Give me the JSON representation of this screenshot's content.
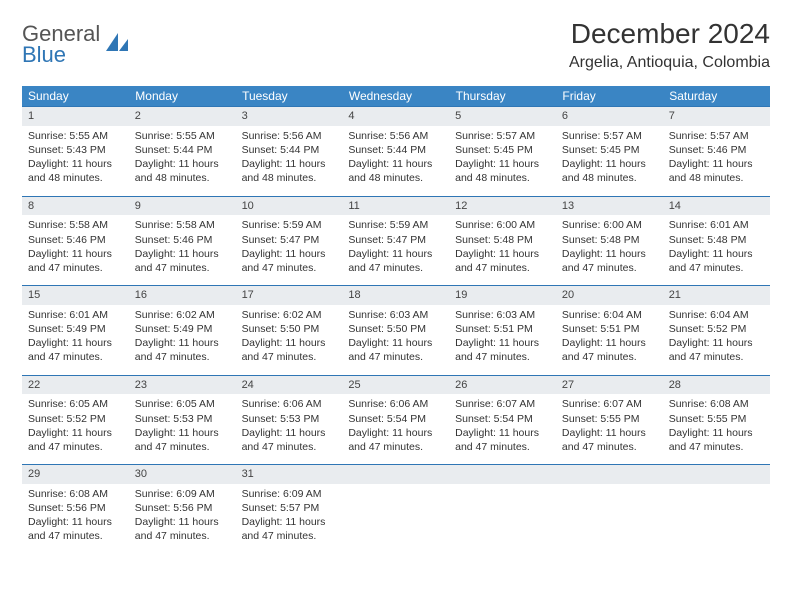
{
  "brand": {
    "line1": "General",
    "line2": "Blue"
  },
  "title": "December 2024",
  "location": "Argelia, Antioquia, Colombia",
  "colors": {
    "header_bg": "#3a85c4",
    "accent": "#2f76b5",
    "daynum_bg": "#e9ecef",
    "text": "#333333",
    "background": "#ffffff"
  },
  "weekdays": [
    "Sunday",
    "Monday",
    "Tuesday",
    "Wednesday",
    "Thursday",
    "Friday",
    "Saturday"
  ],
  "days": [
    {
      "n": 1,
      "sunrise": "5:55 AM",
      "sunset": "5:43 PM",
      "daylight": "11 hours and 48 minutes."
    },
    {
      "n": 2,
      "sunrise": "5:55 AM",
      "sunset": "5:44 PM",
      "daylight": "11 hours and 48 minutes."
    },
    {
      "n": 3,
      "sunrise": "5:56 AM",
      "sunset": "5:44 PM",
      "daylight": "11 hours and 48 minutes."
    },
    {
      "n": 4,
      "sunrise": "5:56 AM",
      "sunset": "5:44 PM",
      "daylight": "11 hours and 48 minutes."
    },
    {
      "n": 5,
      "sunrise": "5:57 AM",
      "sunset": "5:45 PM",
      "daylight": "11 hours and 48 minutes."
    },
    {
      "n": 6,
      "sunrise": "5:57 AM",
      "sunset": "5:45 PM",
      "daylight": "11 hours and 48 minutes."
    },
    {
      "n": 7,
      "sunrise": "5:57 AM",
      "sunset": "5:46 PM",
      "daylight": "11 hours and 48 minutes."
    },
    {
      "n": 8,
      "sunrise": "5:58 AM",
      "sunset": "5:46 PM",
      "daylight": "11 hours and 47 minutes."
    },
    {
      "n": 9,
      "sunrise": "5:58 AM",
      "sunset": "5:46 PM",
      "daylight": "11 hours and 47 minutes."
    },
    {
      "n": 10,
      "sunrise": "5:59 AM",
      "sunset": "5:47 PM",
      "daylight": "11 hours and 47 minutes."
    },
    {
      "n": 11,
      "sunrise": "5:59 AM",
      "sunset": "5:47 PM",
      "daylight": "11 hours and 47 minutes."
    },
    {
      "n": 12,
      "sunrise": "6:00 AM",
      "sunset": "5:48 PM",
      "daylight": "11 hours and 47 minutes."
    },
    {
      "n": 13,
      "sunrise": "6:00 AM",
      "sunset": "5:48 PM",
      "daylight": "11 hours and 47 minutes."
    },
    {
      "n": 14,
      "sunrise": "6:01 AM",
      "sunset": "5:48 PM",
      "daylight": "11 hours and 47 minutes."
    },
    {
      "n": 15,
      "sunrise": "6:01 AM",
      "sunset": "5:49 PM",
      "daylight": "11 hours and 47 minutes."
    },
    {
      "n": 16,
      "sunrise": "6:02 AM",
      "sunset": "5:49 PM",
      "daylight": "11 hours and 47 minutes."
    },
    {
      "n": 17,
      "sunrise": "6:02 AM",
      "sunset": "5:50 PM",
      "daylight": "11 hours and 47 minutes."
    },
    {
      "n": 18,
      "sunrise": "6:03 AM",
      "sunset": "5:50 PM",
      "daylight": "11 hours and 47 minutes."
    },
    {
      "n": 19,
      "sunrise": "6:03 AM",
      "sunset": "5:51 PM",
      "daylight": "11 hours and 47 minutes."
    },
    {
      "n": 20,
      "sunrise": "6:04 AM",
      "sunset": "5:51 PM",
      "daylight": "11 hours and 47 minutes."
    },
    {
      "n": 21,
      "sunrise": "6:04 AM",
      "sunset": "5:52 PM",
      "daylight": "11 hours and 47 minutes."
    },
    {
      "n": 22,
      "sunrise": "6:05 AM",
      "sunset": "5:52 PM",
      "daylight": "11 hours and 47 minutes."
    },
    {
      "n": 23,
      "sunrise": "6:05 AM",
      "sunset": "5:53 PM",
      "daylight": "11 hours and 47 minutes."
    },
    {
      "n": 24,
      "sunrise": "6:06 AM",
      "sunset": "5:53 PM",
      "daylight": "11 hours and 47 minutes."
    },
    {
      "n": 25,
      "sunrise": "6:06 AM",
      "sunset": "5:54 PM",
      "daylight": "11 hours and 47 minutes."
    },
    {
      "n": 26,
      "sunrise": "6:07 AM",
      "sunset": "5:54 PM",
      "daylight": "11 hours and 47 minutes."
    },
    {
      "n": 27,
      "sunrise": "6:07 AM",
      "sunset": "5:55 PM",
      "daylight": "11 hours and 47 minutes."
    },
    {
      "n": 28,
      "sunrise": "6:08 AM",
      "sunset": "5:55 PM",
      "daylight": "11 hours and 47 minutes."
    },
    {
      "n": 29,
      "sunrise": "6:08 AM",
      "sunset": "5:56 PM",
      "daylight": "11 hours and 47 minutes."
    },
    {
      "n": 30,
      "sunrise": "6:09 AM",
      "sunset": "5:56 PM",
      "daylight": "11 hours and 47 minutes."
    },
    {
      "n": 31,
      "sunrise": "6:09 AM",
      "sunset": "5:57 PM",
      "daylight": "11 hours and 47 minutes."
    }
  ],
  "labels": {
    "sunrise": "Sunrise: ",
    "sunset": "Sunset: ",
    "daylight": "Daylight: "
  },
  "layout": {
    "first_weekday_index": 0,
    "columns": 7,
    "rows": 5
  }
}
